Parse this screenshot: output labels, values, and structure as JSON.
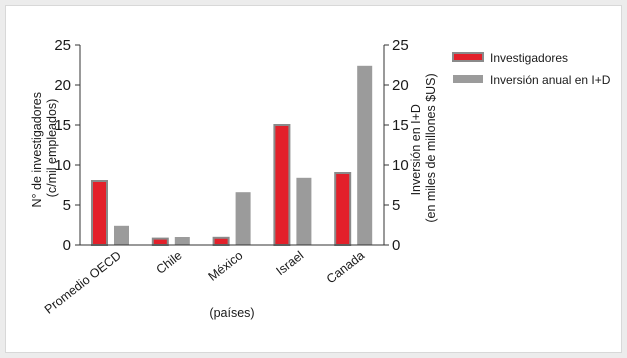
{
  "chart_data": {
    "type": "bar",
    "categories": [
      "Promedio OECD",
      "Chile",
      "México",
      "Israel",
      "Canada"
    ],
    "series": [
      {
        "name": "Investigadores",
        "axis": "left",
        "color": "#e3202a",
        "values": [
          8,
          0.8,
          0.9,
          15,
          9
        ]
      },
      {
        "name": "Inversión anual en I+D",
        "axis": "right",
        "color": "#9b9b9b",
        "values": [
          2.4,
          1,
          6.6,
          8.4,
          22.4
        ]
      }
    ],
    "y_left": {
      "label_lines": [
        "N° de investigadores",
        "(c/mil empleados)"
      ],
      "ticks": [
        "0",
        "5",
        "10",
        "15",
        "20",
        "25"
      ],
      "ylim": [
        0,
        25
      ]
    },
    "y_right": {
      "label_lines": [
        "Inversión en I+D",
        "(en miles de millones $US)"
      ],
      "ticks": [
        "0",
        "5",
        "10",
        "15",
        "20",
        "25"
      ],
      "ylim": [
        0,
        25
      ]
    },
    "xlabel": "(países)",
    "legend_position": "top-right",
    "grid": false
  }
}
